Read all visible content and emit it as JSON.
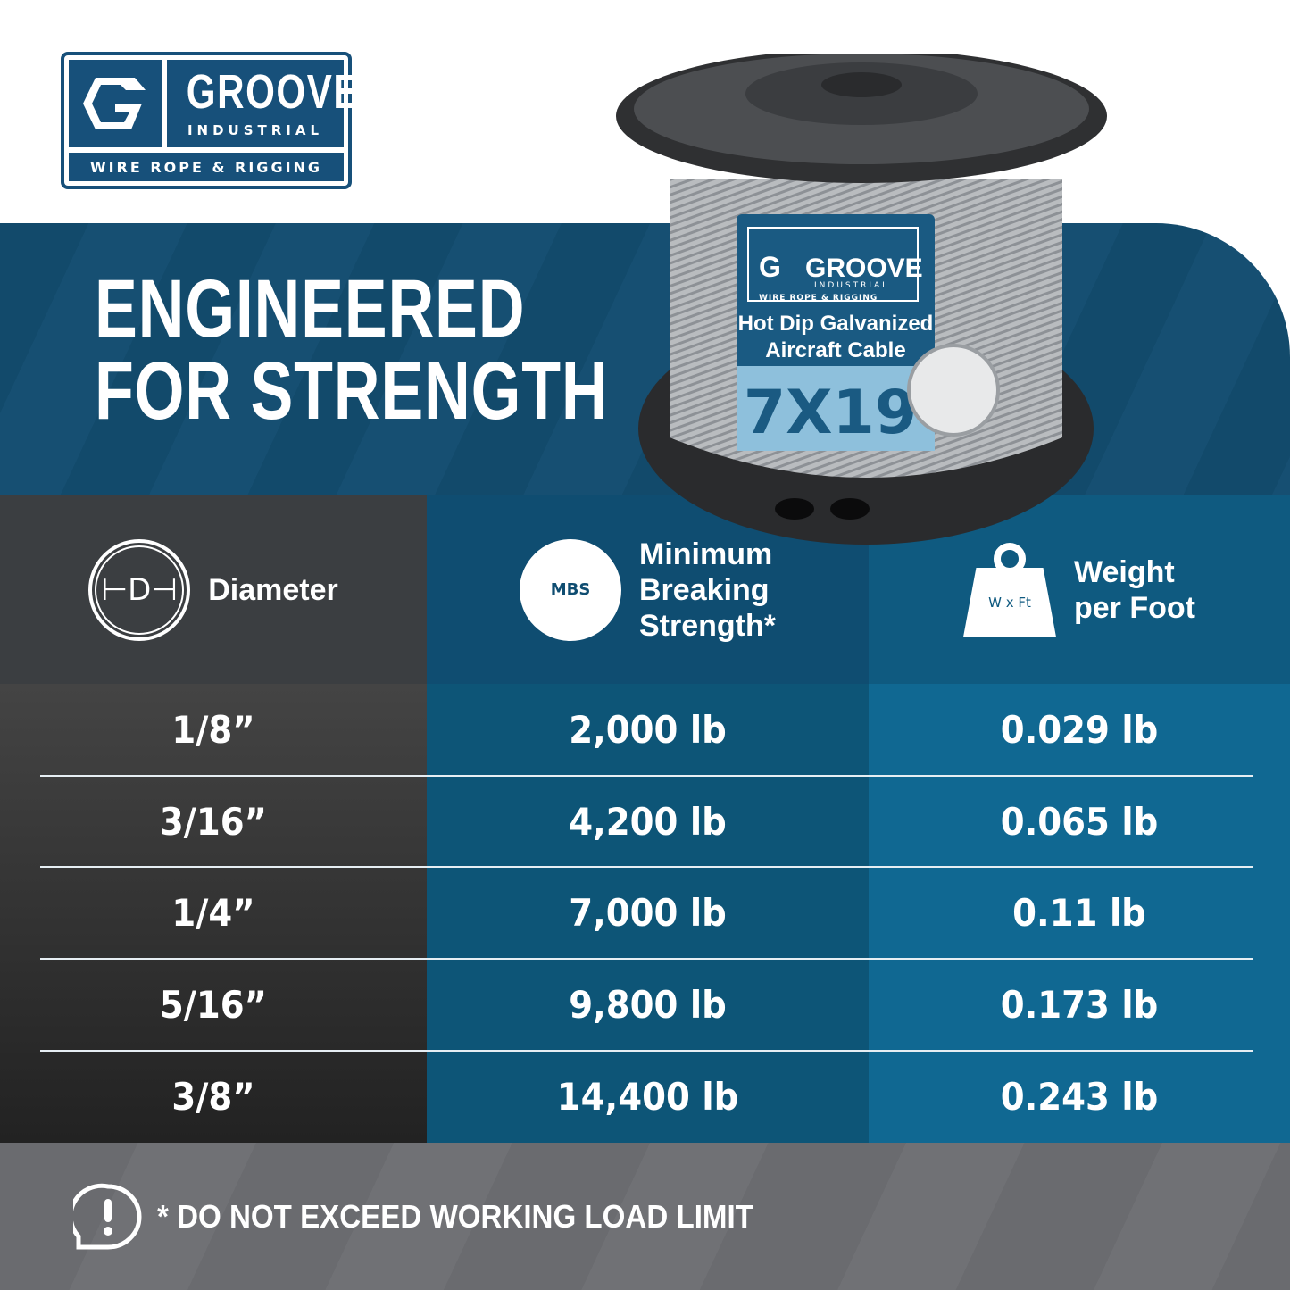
{
  "logo": {
    "name": "GROOVE",
    "sub": "INDUSTRIAL",
    "tagline": "WIRE ROPE & RIGGING"
  },
  "headline": [
    "ENGINEERED",
    "FOR STRENGTH"
  ],
  "product_label": {
    "brand": "GROOVE",
    "sub": "INDUSTRIAL",
    "tagline": "WIRE ROPE & RIGGING",
    "line1": "Hot Dip Galvanized",
    "line2": "Aircraft Cable",
    "construction": "7X19"
  },
  "colors": {
    "brand_blue": "#17507a",
    "band": "#124a6b",
    "col_dark": "#3b3e41",
    "col_mid": "#0f4d71",
    "col_right": "#0f5a80",
    "footer": "#6a6b6f"
  },
  "table": {
    "headers": [
      {
        "icon": "diameter-icon",
        "icon_text": "D",
        "label": "Diameter"
      },
      {
        "icon": "mbs-icon",
        "icon_text": "MBS",
        "label": "Minimum\nBreaking\nStrength*"
      },
      {
        "icon": "weight-icon",
        "icon_text": "W x Ft",
        "label": "Weight\nper Foot"
      }
    ],
    "rows": [
      [
        "1/8”",
        "2,000 lb",
        "0.029 lb"
      ],
      [
        "3/16”",
        "4,200 lb",
        "0.065 lb"
      ],
      [
        "1/4”",
        "7,000 lb",
        "0.11 lb"
      ],
      [
        "5/16”",
        "9,800 lb",
        "0.173 lb"
      ],
      [
        "3/8”",
        "14,400 lb",
        "0.243 lb"
      ]
    ]
  },
  "footer": {
    "icon": "alert-speech-icon",
    "text": "* DO NOT EXCEED WORKING LOAD LIMIT"
  }
}
